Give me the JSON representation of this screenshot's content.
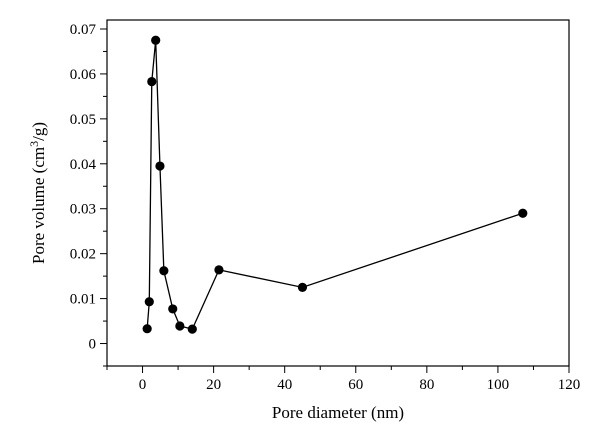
{
  "chart_data": {
    "type": "line",
    "title": "",
    "xlabel": "Pore diameter (nm)",
    "ylabel_prefix": "Pore volume (cm",
    "ylabel_sup": "3",
    "ylabel_suffix": "/g)",
    "xlim": [
      -10,
      120
    ],
    "ylim": [
      -0.005,
      0.072
    ],
    "x_ticks": [
      0,
      20,
      40,
      60,
      80,
      100,
      120
    ],
    "x_tick_labels": [
      "0",
      "20",
      "40",
      "60",
      "80",
      "100",
      "120"
    ],
    "x_minor_step": 10,
    "y_ticks": [
      0,
      0.01,
      0.02,
      0.03,
      0.04,
      0.05,
      0.06,
      0.07
    ],
    "y_tick_labels": [
      "0",
      "0.01",
      "0.02",
      "0.03",
      "0.04",
      "0.05",
      "0.06",
      "0.07"
    ],
    "y_minor_step": 0.005,
    "grid": false,
    "legend": false,
    "series": [
      {
        "color": "#000000",
        "marker": "circle",
        "x": [
          1.3,
          1.9,
          2.6,
          3.7,
          4.9,
          6.0,
          8.5,
          10.5,
          14.0,
          21.5,
          45.0,
          107.0
        ],
        "y": [
          0.0033,
          0.0093,
          0.0583,
          0.0675,
          0.0395,
          0.0162,
          0.0077,
          0.0039,
          0.0032,
          0.0164,
          0.0125,
          0.029
        ]
      }
    ]
  }
}
